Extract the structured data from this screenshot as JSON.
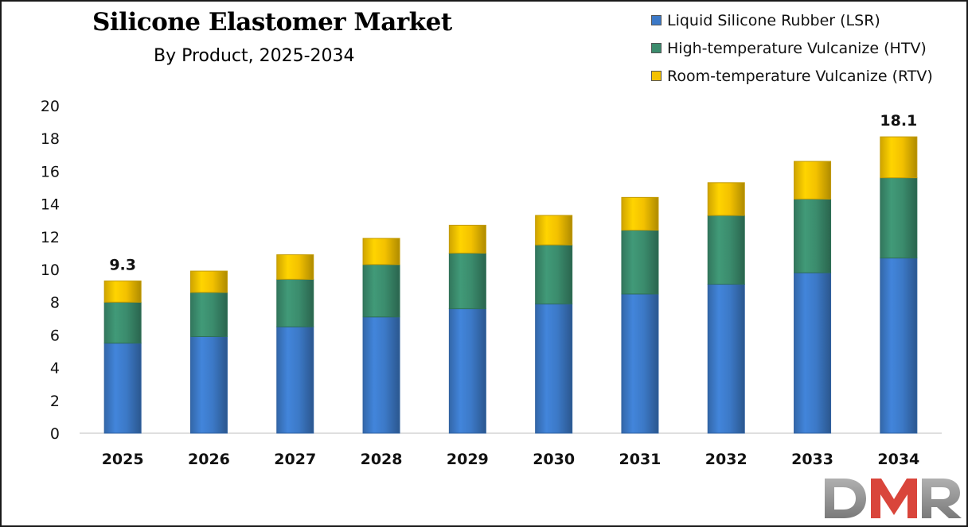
{
  "chart_data": {
    "type": "bar",
    "stacked": true,
    "title": "Silicone Elastomer Market",
    "subtitle": "By Product, 2025-2034",
    "categories": [
      "2025",
      "2026",
      "2027",
      "2028",
      "2029",
      "2030",
      "2031",
      "2032",
      "2033",
      "2034"
    ],
    "series": [
      {
        "name": "Liquid Silicone Rubber (LSR)",
        "color": "#3c79c7",
        "values": [
          5.5,
          5.9,
          6.5,
          7.1,
          7.6,
          7.9,
          8.5,
          9.1,
          9.8,
          10.7
        ]
      },
      {
        "name": "High-temperature Vulcanize (HTV)",
        "color": "#3b8c6d",
        "values": [
          2.5,
          2.7,
          2.9,
          3.2,
          3.4,
          3.6,
          3.9,
          4.2,
          4.5,
          4.9
        ]
      },
      {
        "name": "Room-temperature Vulcanize (RTV)",
        "color": "#f3c100",
        "values": [
          1.3,
          1.3,
          1.5,
          1.6,
          1.7,
          1.8,
          2.0,
          2.0,
          2.3,
          2.5
        ]
      }
    ],
    "total_labels": [
      {
        "category": "2025",
        "text": "9.3"
      },
      {
        "category": "2034",
        "text": "18.1"
      }
    ],
    "ylim": [
      0,
      20
    ],
    "yticks": [
      0,
      2,
      4,
      6,
      8,
      10,
      12,
      14,
      16,
      18,
      20
    ],
    "xlabel": "",
    "ylabel": "",
    "grid": false,
    "legend_position": "top-right"
  },
  "logo": {
    "text": "DMR",
    "colors": [
      "#999999",
      "#d9453b"
    ]
  }
}
